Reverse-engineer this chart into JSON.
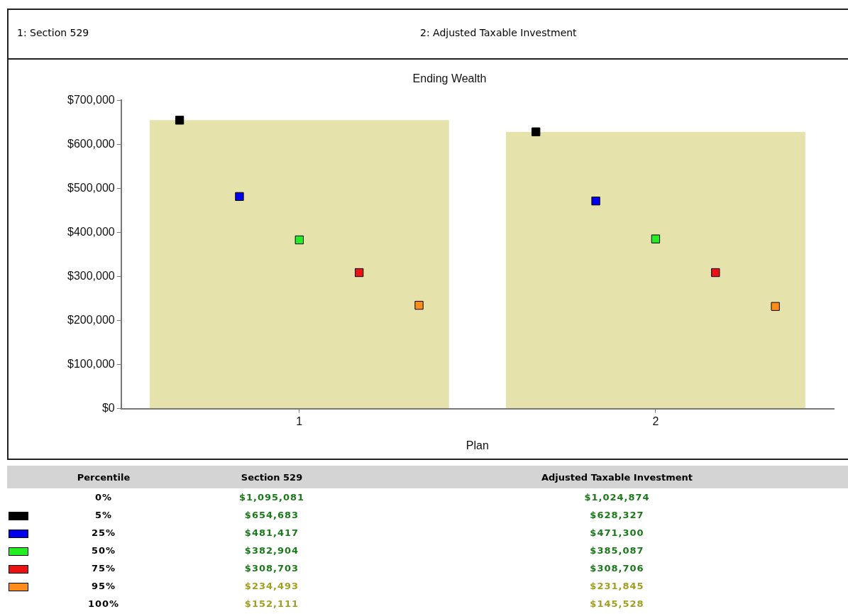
{
  "chart_data": [
    {
      "type": "bar",
      "title": "Ending Wealth",
      "xlabel": "Plan",
      "categories": [
        "1",
        "2"
      ],
      "ylim": [
        0,
        700000
      ],
      "yticks": [
        {
          "value": 0,
          "label": "$0"
        },
        {
          "value": 100000,
          "label": "$100,000"
        },
        {
          "value": 200000,
          "label": "$200,000"
        },
        {
          "value": 300000,
          "label": "$300,000"
        },
        {
          "value": 400000,
          "label": "$400,000"
        },
        {
          "value": 500000,
          "label": "$500,000"
        },
        {
          "value": 600000,
          "label": "$600,000"
        },
        {
          "value": 700000,
          "label": "$700,000"
        }
      ],
      "grid": false,
      "legend": false,
      "marker": "square",
      "annotations": [
        "1: Section 529",
        "2: Adjusted Taxable Investment"
      ],
      "series": [
        {
          "color": "#e6e2ac",
          "values": [
            654683,
            628327
          ]
        },
        {
          "type": "scatter",
          "color": "#000000",
          "values": [
            654683,
            628327
          ]
        },
        {
          "type": "scatter",
          "color": "#0000ee",
          "values": [
            481417,
            471300
          ]
        },
        {
          "type": "scatter",
          "color": "#22ee22",
          "values": [
            382904,
            385087
          ]
        },
        {
          "type": "scatter",
          "color": "#ee1111",
          "values": [
            308703,
            308706
          ]
        },
        {
          "type": "scatter",
          "color": "#ff8c1a",
          "values": [
            234493,
            231845
          ]
        }
      ]
    },
    {
      "type": "other",
      "xlabel": "Percentile",
      "categories": [
        "0%",
        "5%",
        "25%",
        "50%",
        "75%",
        "95%",
        "100%"
      ],
      "colors": [
        null,
        "#000000",
        "#0000ee",
        "#22ee22",
        "#ee1111",
        "#ff8c1a",
        null
      ],
      "series": [
        {
          "name": "Section 529",
          "values": [
            1095081,
            654683,
            481417,
            382904,
            308703,
            234493,
            152111
          ],
          "value_labels": [
            "$1,095,081",
            "$654,683",
            "$481,417",
            "$382,904",
            "$308,703",
            "$234,493",
            "$152,111"
          ],
          "colors": [
            "#1a7a1a",
            "#1a7a1a",
            "#1a7a1a",
            "#1a7a1a",
            "#1a7a1a",
            "#a0a020",
            "#a0a020"
          ]
        },
        {
          "name": "Adjusted Taxable Investment",
          "values": [
            1024874,
            628327,
            471300,
            385087,
            308706,
            231845,
            145528
          ],
          "value_labels": [
            "$1,024,874",
            "$628,327",
            "$471,300",
            "$385,087",
            "$308,706",
            "$231,845",
            "$145,528"
          ],
          "colors": [
            "#1a7a1a",
            "#1a7a1a",
            "#1a7a1a",
            "#1a7a1a",
            "#1a7a1a",
            "#a0a020",
            "#a0a020"
          ]
        }
      ]
    }
  ]
}
